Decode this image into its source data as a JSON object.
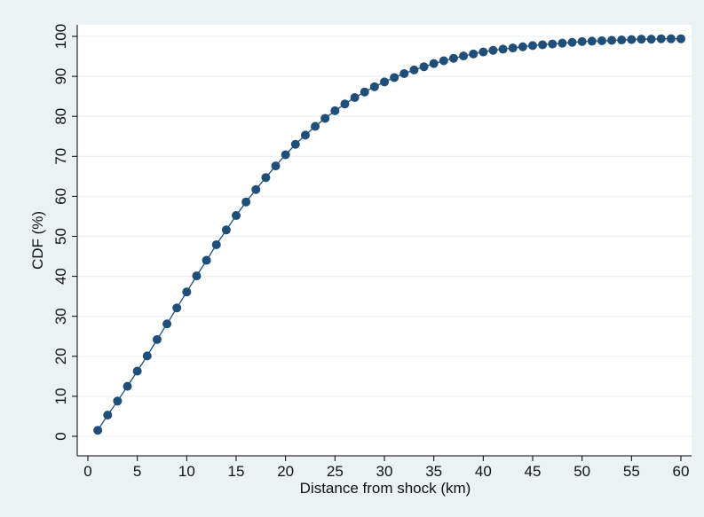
{
  "chart_data": {
    "type": "line",
    "title": "",
    "xlabel": "Distance from shock (km)",
    "ylabel": "CDF (%)",
    "xlim": [
      0,
      60
    ],
    "ylim": [
      0,
      100
    ],
    "x_ticks": [
      0,
      5,
      10,
      15,
      20,
      25,
      30,
      35,
      40,
      45,
      50,
      55,
      60
    ],
    "y_ticks": [
      0,
      10,
      20,
      30,
      40,
      50,
      60,
      70,
      80,
      90,
      100
    ],
    "grid": true,
    "marker": "circle",
    "colors": {
      "series": "#1f4e79",
      "background": "#eaf2f3",
      "plot_background": "#ffffff",
      "grid": "#eaf2f3"
    },
    "series": [
      {
        "x": [
          1,
          2,
          3,
          4,
          5,
          6,
          7,
          8,
          9,
          10,
          11,
          12,
          13,
          14,
          15,
          16,
          17,
          18,
          19,
          20,
          21,
          22,
          23,
          24,
          25,
          26,
          27,
          28,
          29,
          30,
          31,
          32,
          33,
          34,
          35,
          36,
          37,
          38,
          39,
          40,
          41,
          42,
          43,
          44,
          45,
          46,
          47,
          48,
          49,
          50,
          51,
          52,
          53,
          54,
          55,
          56,
          57,
          58,
          59,
          60
        ],
        "y": [
          1.5,
          5.3,
          8.8,
          12.5,
          16.3,
          20.1,
          24.2,
          28.1,
          32.1,
          36.1,
          40.1,
          44.0,
          47.9,
          51.6,
          55.2,
          58.6,
          61.7,
          64.7,
          67.6,
          70.4,
          73.0,
          75.3,
          77.5,
          79.5,
          81.4,
          83.1,
          84.7,
          86.1,
          87.4,
          88.6,
          89.7,
          90.7,
          91.6,
          92.4,
          93.2,
          93.9,
          94.5,
          95.1,
          95.6,
          96.1,
          96.5,
          96.8,
          97.1,
          97.4,
          97.7,
          97.9,
          98.1,
          98.3,
          98.5,
          98.7,
          98.8,
          98.9,
          99.0,
          99.1,
          99.2,
          99.3,
          99.3,
          99.4,
          99.4,
          99.4
        ]
      }
    ]
  }
}
